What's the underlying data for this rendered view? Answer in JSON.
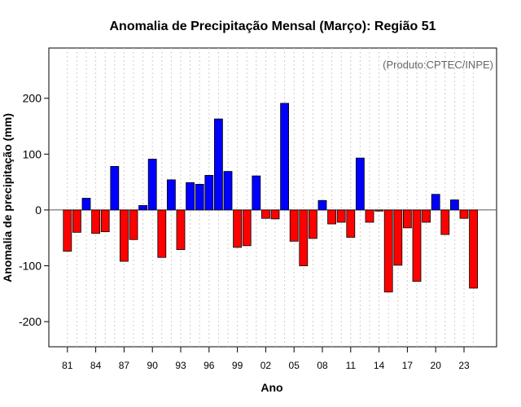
{
  "chart_data": {
    "type": "bar",
    "title": "Anomalia de Precipitação Mensal (Março): Região 51",
    "xlabel": "Ano",
    "ylabel": "Anomalia de precipitação (mm)",
    "credit": "(Produto:CPTEC/INPE)",
    "ylim": [
      -245,
      290
    ],
    "yticks": [
      -200,
      -100,
      0,
      100,
      200
    ],
    "grid": true,
    "legend": "none",
    "colors": {
      "positive": "#0000ff",
      "negative": "#ff0000",
      "edge": "#000000",
      "grid": "#cccccc",
      "zero_line": "#555555"
    },
    "x": [
      1981,
      1982,
      1983,
      1984,
      1985,
      1986,
      1987,
      1988,
      1989,
      1990,
      1991,
      1992,
      1993,
      1994,
      1995,
      1996,
      1997,
      1998,
      1999,
      2000,
      2001,
      2002,
      2003,
      2004,
      2005,
      2006,
      2007,
      2008,
      2009,
      2010,
      2011,
      2012,
      2013,
      2014,
      2015,
      2016,
      2017,
      2018,
      2019,
      2020,
      2021,
      2022,
      2023,
      2024
    ],
    "values": [
      -74,
      -40,
      21,
      -42,
      -39,
      78,
      -92,
      -53,
      8,
      91,
      -85,
      54,
      -71,
      49,
      46,
      62,
      163,
      69,
      -67,
      -64,
      61,
      -15,
      -16,
      191,
      -56,
      -100,
      -51,
      17,
      -25,
      -22,
      -49,
      93,
      -22,
      -2,
      -147,
      -99,
      -32,
      -128,
      -22,
      28,
      -44,
      18,
      -15,
      -140
    ],
    "xtick_labels": [
      "81",
      "84",
      "87",
      "90",
      "93",
      "96",
      "99",
      "02",
      "05",
      "08",
      "11",
      "14",
      "17",
      "20",
      "23"
    ],
    "xtick_positions": [
      1981,
      1984,
      1987,
      1990,
      1993,
      1996,
      1999,
      2002,
      2005,
      2008,
      2011,
      2014,
      2017,
      2020,
      2023
    ]
  }
}
